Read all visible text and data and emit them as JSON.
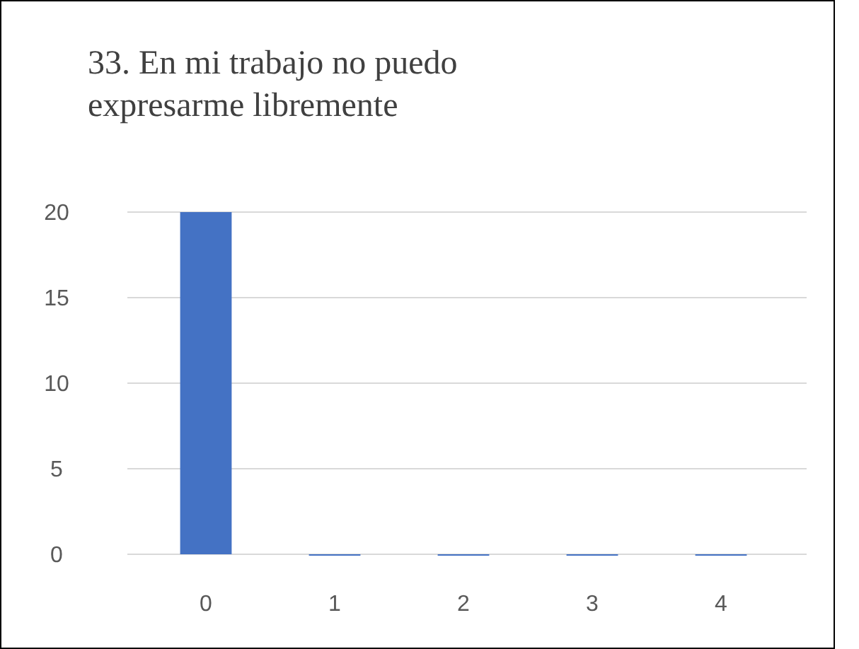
{
  "chart_data": {
    "type": "bar",
    "title": "33. En mi trabajo no puedo expresarme libremente",
    "categories": [
      "0",
      "1",
      "2",
      "3",
      "4"
    ],
    "values": [
      20,
      0,
      0,
      0,
      0
    ],
    "color": "#4472c4",
    "ylim": [
      0,
      20
    ],
    "yticks": [
      0,
      5,
      10,
      15,
      20
    ],
    "grid": "y"
  }
}
